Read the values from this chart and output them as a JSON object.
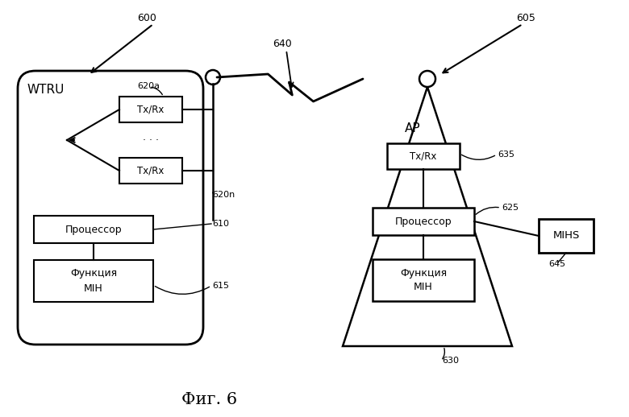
{
  "title": "Фиг. 6",
  "bg_color": "#ffffff",
  "label_600": "600",
  "label_605": "605",
  "label_640": "640",
  "label_620a": "620a",
  "label_620n": "620n",
  "label_610": "610",
  "label_615": "615",
  "label_635": "635",
  "label_625": "625",
  "label_630": "630",
  "label_645": "645",
  "wtru_label": "WTRU",
  "ap_label": "AP",
  "mihs_label": "MIHS",
  "txrx_label": "Tx/Rx",
  "proc_label": "Процессор",
  "mih_label": "Функция\nMIH"
}
